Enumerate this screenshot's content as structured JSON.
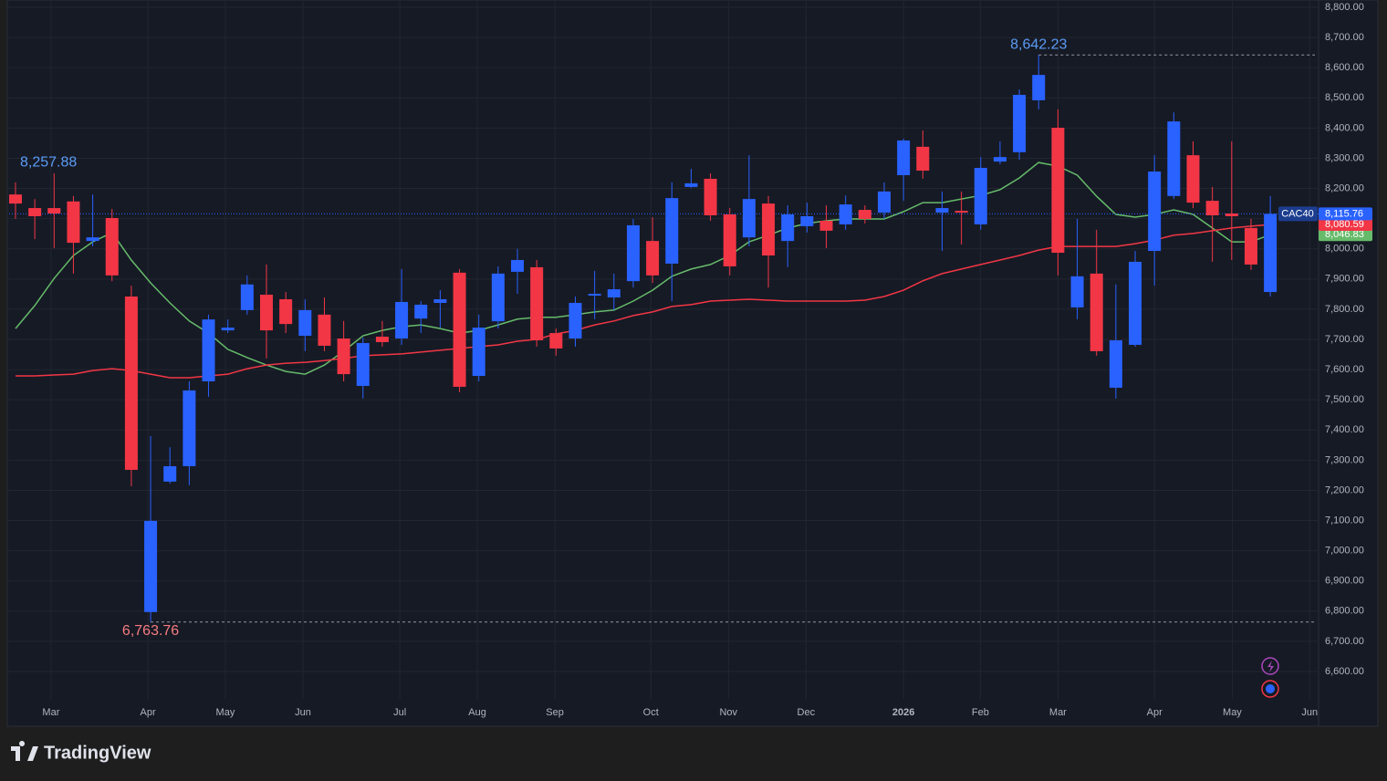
{
  "chart_data": {
    "type": "candlestick",
    "series": [
      {
        "name": "CAC40",
        "up_color": "#2962ff",
        "down_color": "#f23645",
        "open": [
          8180,
          8135,
          8135,
          8157,
          8026,
          8102,
          7842,
          6797,
          7229,
          7280,
          7561,
          7730,
          7797,
          7848,
          7833,
          7712,
          7782,
          7703,
          7546,
          7709,
          7703,
          7769,
          7821,
          7921,
          7579,
          7760,
          7924,
          7939,
          7721,
          7703,
          7845,
          7839,
          7893,
          8026,
          7951,
          8205,
          8232,
          8114,
          8038,
          8150,
          8026,
          8075,
          8093,
          8081,
          8129,
          8120,
          8244,
          8338,
          8120,
          8126,
          8081,
          8289,
          8320,
          8492,
          8401,
          7806,
          7918,
          7540,
          7682,
          7993,
          8175,
          8310,
          8159,
          8117,
          8069,
          7857
        ],
        "high": [
          8220,
          8165,
          8250,
          8175,
          8180,
          8132,
          7878,
          7380,
          7343,
          7561,
          7782,
          7766,
          7912,
          7948,
          7857,
          7833,
          7839,
          7761,
          7706,
          7761,
          7933,
          7827,
          7863,
          7933,
          7782,
          7942,
          8000,
          7963,
          7736,
          7842,
          7927,
          7918,
          8099,
          8105,
          8220,
          8265,
          8250,
          8135,
          8310,
          8175,
          8144,
          8153,
          8144,
          8177,
          8144,
          8220,
          8365,
          8392,
          8190,
          8190,
          8304,
          8356,
          8528,
          8642.23,
          8462,
          8099,
          8063,
          7882,
          7993,
          8310,
          8452,
          8356,
          8205,
          8356,
          8099,
          8175
        ],
        "low": [
          8099,
          8032,
          8002,
          7918,
          8008,
          7893,
          7214,
          6763.76,
          7223,
          7217,
          7510,
          7721,
          7782,
          7637,
          7721,
          7661,
          7661,
          7561,
          7504,
          7676,
          7682,
          7721,
          7739,
          7525,
          7561,
          7736,
          7851,
          7676,
          7646,
          7676,
          7767,
          7797,
          7872,
          7887,
          7827,
          8202,
          8093,
          7912,
          8008,
          7872,
          7939,
          8054,
          8002,
          8063,
          8084,
          8099,
          8159,
          8232,
          7993,
          8014,
          8063,
          8280,
          8295,
          8462,
          7912,
          7767,
          7646,
          7504,
          7676,
          7878,
          8165,
          8135,
          7957,
          7963,
          7930,
          7842
        ],
        "close": [
          8150,
          8108,
          8117,
          8020,
          8038,
          7912,
          7268,
          7099,
          7280,
          7531,
          7766,
          7739,
          7882,
          7730,
          7751,
          7797,
          7679,
          7585,
          7688,
          7691,
          7824,
          7815,
          7833,
          7543,
          7739,
          7918,
          7963,
          7697,
          7670,
          7821,
          7851,
          7866,
          8078,
          7912,
          8168,
          8217,
          8111,
          7942,
          8165,
          7978,
          8114,
          8108,
          8060,
          8147,
          8099,
          8190,
          8359,
          8259,
          8135,
          8120,
          8268,
          8304,
          8510,
          8576,
          7987,
          7909,
          7661,
          7697,
          7957,
          8256,
          8422,
          8153,
          8111,
          8108,
          7948,
          8115.76
        ],
        "last_label": "8,115.76"
      }
    ],
    "lines": [
      {
        "color": "#66bb6a",
        "values": [
          7736,
          7812,
          7902,
          7978,
          8023,
          8054,
          7963,
          7887,
          7821,
          7761,
          7721,
          7667,
          7640,
          7615,
          7594,
          7585,
          7615,
          7661,
          7712,
          7730,
          7742,
          7748,
          7736,
          7721,
          7730,
          7748,
          7767,
          7773,
          7773,
          7782,
          7791,
          7797,
          7827,
          7863,
          7909,
          7933,
          7948,
          7978,
          8023,
          8045,
          8069,
          8084,
          8093,
          8099,
          8099,
          8099,
          8123,
          8153,
          8153,
          8165,
          8177,
          8196,
          8235,
          8286,
          8274,
          8244,
          8174,
          8114,
          8105,
          8114,
          8129,
          8114,
          8069,
          8023,
          8023,
          8046.83
        ],
        "last_label": "8,046.83"
      },
      {
        "color": "#f23645",
        "values": [
          7579,
          7579,
          7582,
          7585,
          7597,
          7603,
          7597,
          7585,
          7573,
          7573,
          7579,
          7585,
          7603,
          7615,
          7621,
          7624,
          7630,
          7637,
          7646,
          7649,
          7652,
          7658,
          7664,
          7670,
          7676,
          7682,
          7694,
          7700,
          7718,
          7730,
          7748,
          7761,
          7779,
          7791,
          7809,
          7815,
          7827,
          7830,
          7833,
          7830,
          7827,
          7827,
          7827,
          7827,
          7830,
          7842,
          7863,
          7894,
          7918,
          7933,
          7948,
          7963,
          7978,
          7996,
          8008,
          8008,
          8008,
          8008,
          8017,
          8029,
          8045,
          8051,
          8060,
          8069,
          8075,
          8080.59
        ],
        "last_label": "8,080.59"
      }
    ],
    "annotations": [
      {
        "value": 8642.23,
        "label": "8,642.23"
      },
      {
        "value": 6763.76,
        "label": "6,763.76"
      },
      {
        "value": 8257.88,
        "label": "8,257.88"
      }
    ],
    "ylim": [
      6600,
      8800
    ],
    "yticks": [
      {
        "value": 6600,
        "label": "6,600.00"
      },
      {
        "value": 6700,
        "label": "6,700.00"
      },
      {
        "value": 6800,
        "label": "6,800.00"
      },
      {
        "value": 6900,
        "label": "6,900.00"
      },
      {
        "value": 7000,
        "label": "7,000.00"
      },
      {
        "value": 7100,
        "label": "7,100.00"
      },
      {
        "value": 7200,
        "label": "7,200.00"
      },
      {
        "value": 7300,
        "label": "7,300.00"
      },
      {
        "value": 7400,
        "label": "7,400.00"
      },
      {
        "value": 7500,
        "label": "7,500.00"
      },
      {
        "value": 7600,
        "label": "7,600.00"
      },
      {
        "value": 7700,
        "label": "7,700.00"
      },
      {
        "value": 7800,
        "label": "7,800.00"
      },
      {
        "value": 7900,
        "label": "7,900.00"
      },
      {
        "value": 8000,
        "label": "8,000.00"
      },
      {
        "value": 8100,
        "label": "8,100.00"
      },
      {
        "value": 8200,
        "label": "8,200.00"
      },
      {
        "value": 8300,
        "label": "8,300.00"
      },
      {
        "value": 8400,
        "label": "8,400.00"
      },
      {
        "value": 8500,
        "label": "8,500.00"
      },
      {
        "value": 8600,
        "label": "8,600.00"
      },
      {
        "value": 8700,
        "label": "8,700.00"
      },
      {
        "value": 8800,
        "label": "8,800.00"
      }
    ],
    "xlim": [
      -0.33,
      67.5
    ],
    "xticks": [
      {
        "value": 1.84,
        "label": "Mar"
      },
      {
        "value": 6.86,
        "label": "Apr"
      },
      {
        "value": 10.87,
        "label": "May"
      },
      {
        "value": 14.89,
        "label": "Jun"
      },
      {
        "value": 19.91,
        "label": "Jul"
      },
      {
        "value": 23.92,
        "label": "Aug"
      },
      {
        "value": 27.94,
        "label": "Sep"
      },
      {
        "value": 32.91,
        "label": "Oct"
      },
      {
        "value": 36.93,
        "label": "Nov"
      },
      {
        "value": 40.95,
        "label": "Dec"
      },
      {
        "value": 46.0,
        "label": "2026"
      },
      {
        "value": 49.98,
        "label": "Feb"
      },
      {
        "value": 54.0,
        "label": "Mar"
      },
      {
        "value": 59.0,
        "label": "Apr"
      },
      {
        "value": 63.03,
        "label": "May"
      },
      {
        "value": 67.04,
        "label": "Jun"
      }
    ],
    "grid": true,
    "brand": "TradingView"
  }
}
